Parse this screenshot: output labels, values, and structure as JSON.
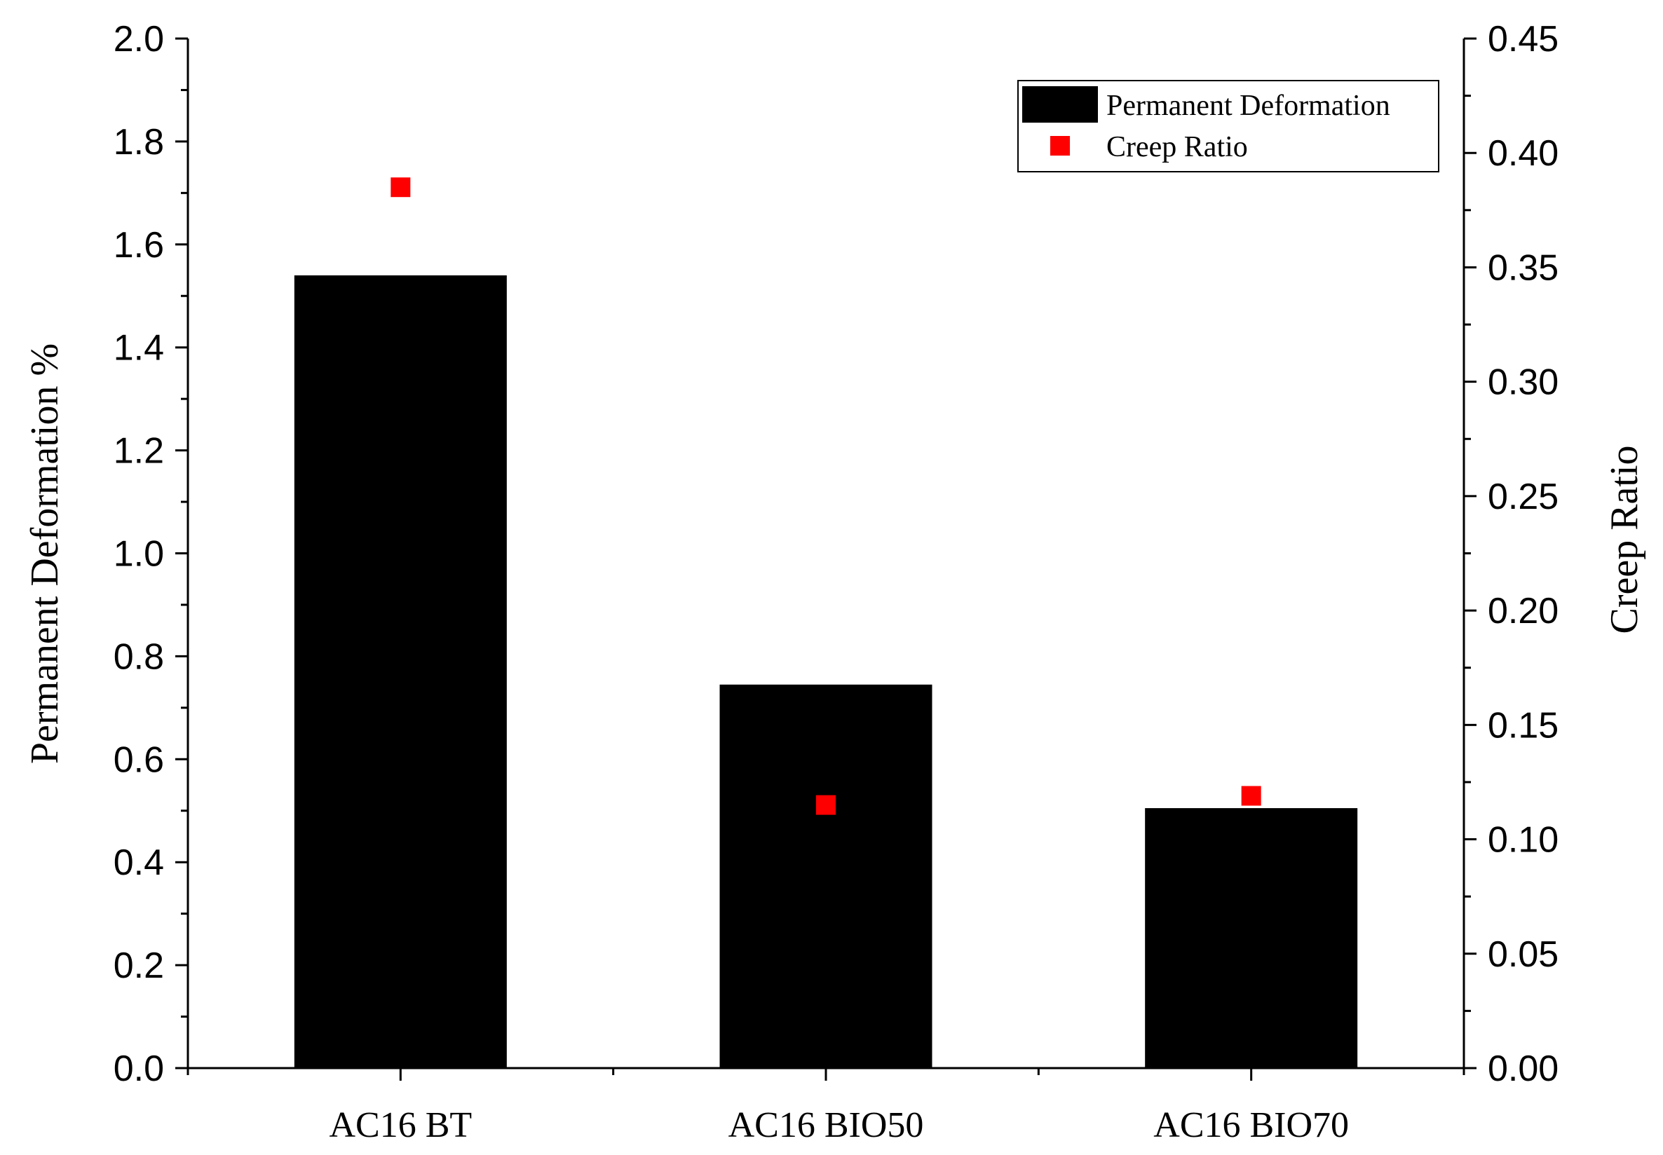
{
  "chart_data": {
    "type": "bar",
    "categories": [
      "AC16 BT",
      "AC16 BIO50",
      "AC16 BIO70"
    ],
    "series": [
      {
        "name": "Permanent Deformation",
        "kind": "bar",
        "axis": "left",
        "color": "#000000",
        "values": [
          1.54,
          0.745,
          0.505
        ]
      },
      {
        "name": "Creep Ratio",
        "kind": "scatter",
        "axis": "right",
        "color": "#ff0000",
        "values": [
          0.385,
          0.115,
          0.119
        ]
      }
    ],
    "ylabel": "Permanent Deformation %",
    "y2label": "Creep Ratio",
    "ylim": [
      0,
      2.0
    ],
    "y2lim": [
      0,
      0.45
    ],
    "yticks": [
      "0.0",
      "0.2",
      "0.4",
      "0.6",
      "0.8",
      "1.0",
      "1.2",
      "1.4",
      "1.6",
      "1.8",
      "2.0"
    ],
    "y2ticks": [
      "0.00",
      "0.05",
      "0.10",
      "0.15",
      "0.20",
      "0.25",
      "0.30",
      "0.35",
      "0.40",
      "0.45"
    ],
    "legend": {
      "position": "top-right",
      "entries": [
        "Permanent Deformation",
        "Creep Ratio"
      ]
    },
    "grid": false
  }
}
